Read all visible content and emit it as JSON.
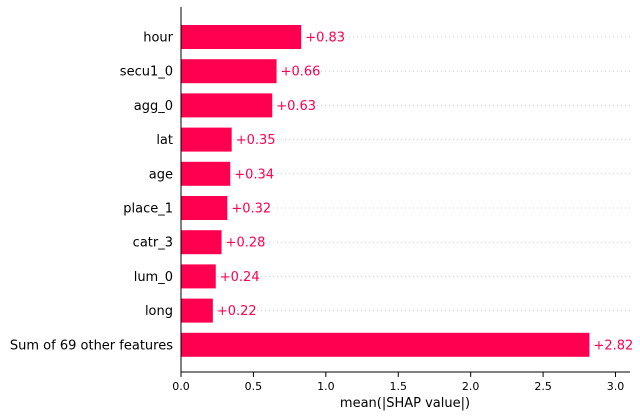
{
  "chart_data": {
    "type": "bar",
    "orientation": "horizontal",
    "categories": [
      "hour",
      "secu1_0",
      "agg_0",
      "lat",
      "age",
      "place_1",
      "catr_3",
      "lum_0",
      "long",
      "Sum of 69 other features"
    ],
    "values": [
      0.83,
      0.66,
      0.63,
      0.35,
      0.34,
      0.32,
      0.28,
      0.24,
      0.22,
      2.82
    ],
    "value_labels": [
      "+0.83",
      "+0.66",
      "+0.63",
      "+0.35",
      "+0.34",
      "+0.32",
      "+0.28",
      "+0.24",
      "+0.22",
      "+2.82"
    ],
    "xlabel": "mean(|SHAP value|)",
    "ylabel": "",
    "xlim": [
      0,
      3.1
    ],
    "xticks": [
      0.0,
      0.5,
      1.0,
      1.5,
      2.0,
      2.5,
      3.0
    ],
    "xtick_labels": [
      "0.0",
      "0.5",
      "1.0",
      "1.5",
      "2.0",
      "2.5",
      "3.0"
    ],
    "grid": "horizontal dotted",
    "bar_color": "#ff0051",
    "label_color": "#ff0051"
  }
}
